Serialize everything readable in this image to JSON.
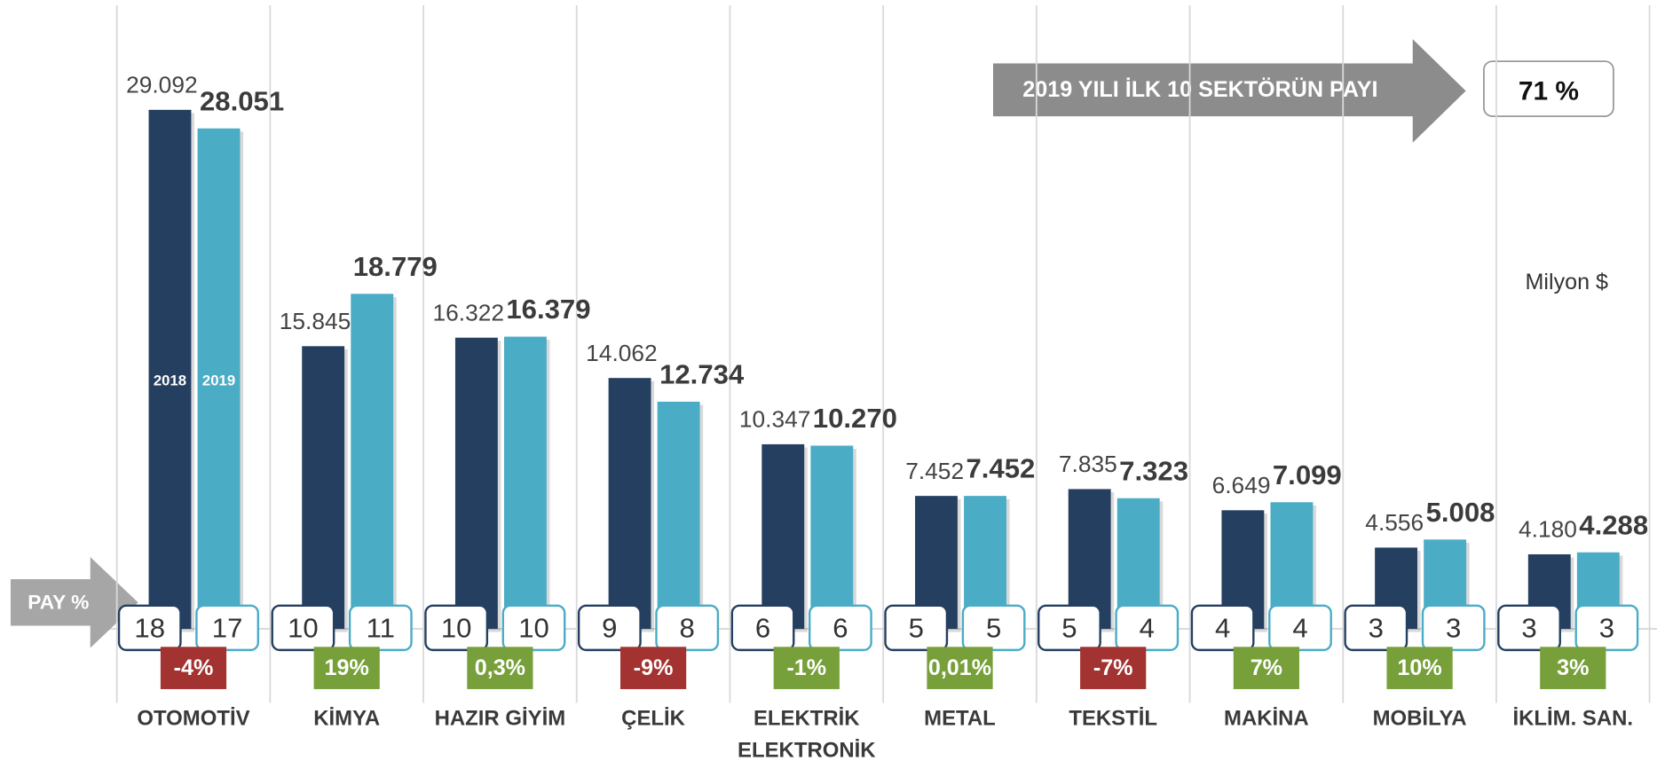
{
  "chart_data": {
    "type": "bar",
    "unit_note": "Milyon $",
    "banner": "2019 YILI İLK 10 SEKTÖRÜN PAYI",
    "banner_value": 71,
    "banner_value_label": "71 %",
    "share_title": "PAY %",
    "categories": [
      "OTOMOTİV",
      "KİMYA",
      "HAZIR GİYİM",
      "ÇELİK",
      "ELEKTRİK\nELEKTRONİK",
      "METAL",
      "TEKSTİL",
      "MAKİNA",
      "MOBİLYA",
      "İKLİM. SAN."
    ],
    "series": [
      {
        "name": "2018",
        "color": "#243f60",
        "values": [
          29092,
          15845,
          16322,
          14062,
          10347,
          7452,
          7835,
          6649,
          4556,
          4180
        ],
        "value_labels": [
          "29.092",
          "15.845",
          "16.322",
          "14.062",
          "10.347",
          "7.452",
          "7.835",
          "6.649",
          "4.556",
          "4.180"
        ],
        "shares": [
          18,
          10,
          10,
          9,
          6,
          5,
          5,
          4,
          3,
          3
        ]
      },
      {
        "name": "2019",
        "color": "#4bacc6",
        "values": [
          28051,
          18779,
          16379,
          12734,
          10270,
          7452,
          7323,
          7099,
          5008,
          4288
        ],
        "value_labels": [
          "28.051",
          "18.779",
          "16.379",
          "12.734",
          "10.270",
          "7.452",
          "7.323",
          "7.099",
          "5.008",
          "4.288"
        ],
        "shares": [
          17,
          11,
          10,
          8,
          6,
          5,
          4,
          4,
          3,
          3
        ]
      }
    ],
    "change": {
      "values": [
        -4,
        19,
        0.3,
        -9,
        -1,
        0.01,
        -7,
        7,
        10,
        3
      ],
      "value_labels": [
        "-4%",
        "19%",
        "0,3%",
        "-9%",
        "-1%",
        "0,01%",
        "-7%",
        "7%",
        "10%",
        "3%"
      ],
      "colors": [
        "#a33331",
        "#77a03a",
        "#77a03a",
        "#a33331",
        "#77a03a",
        "#77a03a",
        "#a33331",
        "#77a03a",
        "#77a03a",
        "#77a03a"
      ]
    }
  }
}
